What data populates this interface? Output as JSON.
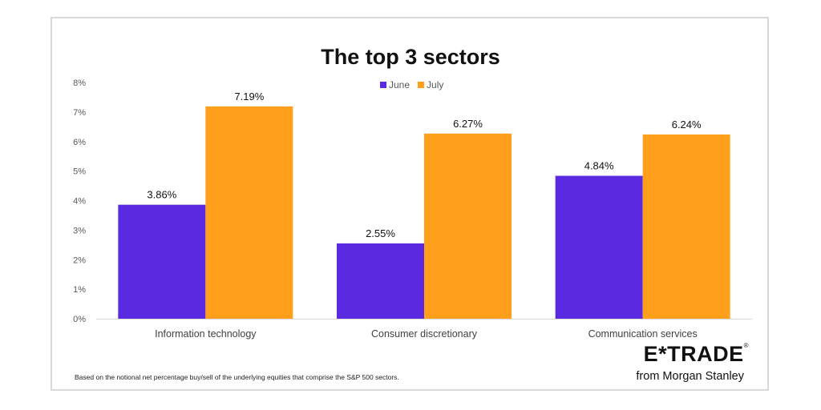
{
  "chart_data": {
    "type": "bar",
    "title": "The top 3 sectors",
    "categories": [
      "Information technology",
      "Consumer discretionary",
      "Communication services"
    ],
    "series": [
      {
        "name": "June",
        "values": [
          3.86,
          2.55,
          4.84
        ],
        "labels": [
          "3.86%",
          "2.55%",
          "4.84%"
        ],
        "color": "#5a2ae0"
      },
      {
        "name": "July",
        "values": [
          7.19,
          6.27,
          6.24
        ],
        "labels": [
          "7.19%",
          "6.27%",
          "6.24%"
        ],
        "color": "#ff9f1c"
      }
    ],
    "ylim": [
      0,
      8
    ],
    "yticks": [
      0,
      1,
      2,
      3,
      4,
      5,
      6,
      7,
      8
    ],
    "ytick_labels": [
      "0%",
      "1%",
      "2%",
      "3%",
      "4%",
      "5%",
      "6%",
      "7%",
      "8%"
    ],
    "xlabel": "",
    "ylabel": "",
    "grid": false,
    "legend_position": "top-center"
  },
  "footnote": "Based on the notional net percentage buy/sell of the underlying equities that comprise the S&P 500 sectors.",
  "logo": {
    "brand": "E*TRADE",
    "tagline": "from Morgan Stanley"
  },
  "colors": {
    "june": "#5a2ae0",
    "july": "#ff9f1c",
    "axis_text": "#595959",
    "axis_line": "#d9d9d9"
  }
}
